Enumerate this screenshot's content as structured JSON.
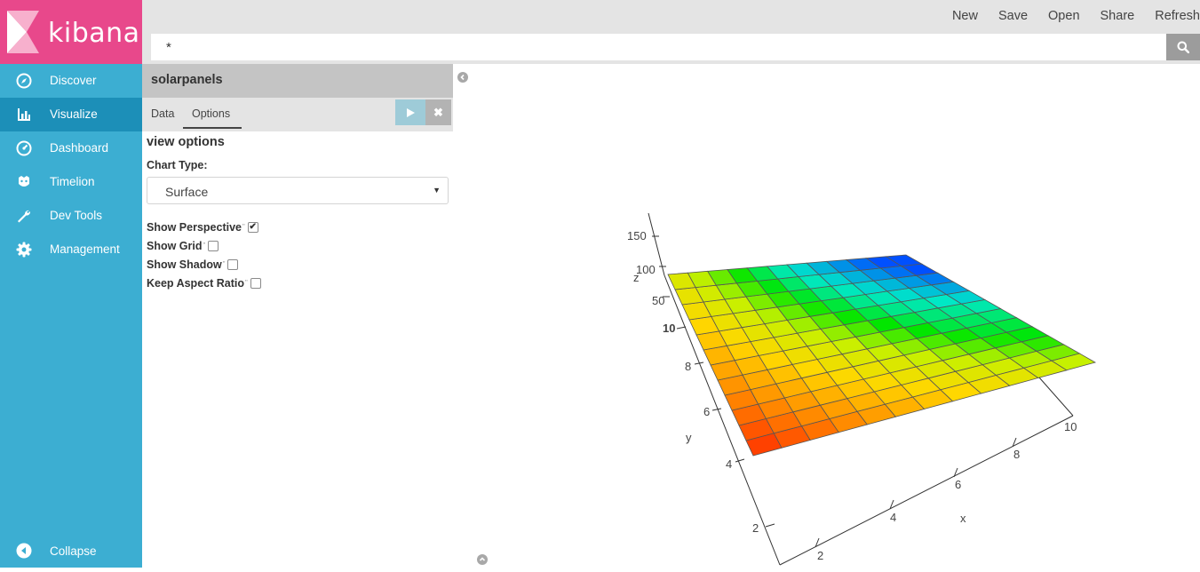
{
  "app": {
    "name": "kibana"
  },
  "sidebar": {
    "items": [
      {
        "label": "Discover",
        "icon": "compass-icon",
        "active": false
      },
      {
        "label": "Visualize",
        "icon": "bar-chart-icon",
        "active": true
      },
      {
        "label": "Dashboard",
        "icon": "gauge-icon",
        "active": false
      },
      {
        "label": "Timelion",
        "icon": "timelion-icon",
        "active": false
      },
      {
        "label": "Dev Tools",
        "icon": "wrench-icon",
        "active": false
      },
      {
        "label": "Management",
        "icon": "gear-icon",
        "active": false
      }
    ],
    "collapse_label": "Collapse"
  },
  "topbar": {
    "menu": [
      "New",
      "Save",
      "Open",
      "Share",
      "Refresh"
    ],
    "search_value": "*"
  },
  "panel": {
    "title": "solarpanels",
    "tabs": [
      "Data",
      "Options"
    ],
    "active_tab": "Options",
    "heading": "view options",
    "chart_type_label": "Chart Type:",
    "chart_type_value": "Surface",
    "options": [
      {
        "label": "Show Perspective",
        "checked": true
      },
      {
        "label": "Show Grid",
        "checked": false
      },
      {
        "label": "Show Shadow",
        "checked": false
      },
      {
        "label": "Keep Aspect Ratio",
        "checked": false
      }
    ]
  },
  "chart_data": {
    "type": "surface",
    "xlabel": "x",
    "ylabel": "y",
    "zlabel": "z",
    "x_ticks": [
      "2",
      "4",
      "6",
      "8",
      "10"
    ],
    "y_ticks": [
      "2",
      "4",
      "6",
      "8",
      "10"
    ],
    "z_ticks": [
      "50",
      "100",
      "150"
    ],
    "colormap": [
      "#ff2a00",
      "#ff8c00",
      "#ffd700",
      "#c8f000",
      "#00e600",
      "#00e8c8",
      "#0050ff"
    ]
  }
}
